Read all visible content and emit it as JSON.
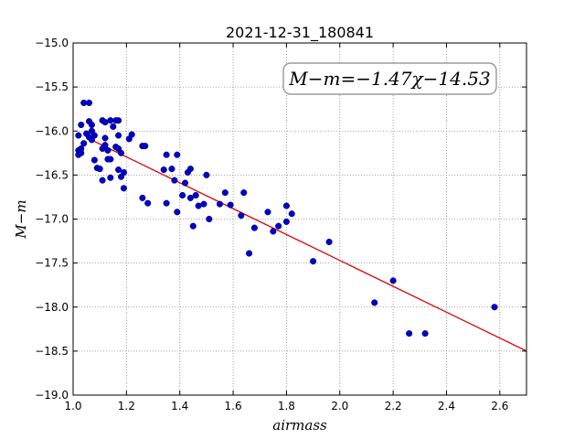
{
  "chart_data": {
    "type": "scatter",
    "title": "2021-12-31_180841",
    "xlabel": "airmass",
    "ylabel": "M−m",
    "xlim": [
      1.0,
      2.7
    ],
    "ylim": [
      -19.0,
      -15.0
    ],
    "xticks": [
      1.0,
      1.2,
      1.4,
      1.6,
      1.8,
      2.0,
      2.2,
      2.4,
      2.6
    ],
    "xtick_labels": [
      "1.0",
      "1.2",
      "1.4",
      "1.6",
      "1.8",
      "2.0",
      "2.2",
      "2.4",
      "2.6"
    ],
    "yticks": [
      -15.0,
      -15.5,
      -16.0,
      -16.5,
      -17.0,
      -17.5,
      -18.0,
      -18.5,
      -19.0
    ],
    "ytick_labels": [
      "−15.0",
      "−15.5",
      "−16.0",
      "−16.5",
      "−17.0",
      "−17.5",
      "−18.0",
      "−18.5",
      "−19.0"
    ],
    "grid": true,
    "annotation": "M−m=−1.47χ−14.53",
    "annotation_position": "top-right",
    "colors": {
      "points": "#0000cc",
      "fit": "#dd0000",
      "grid": "#888888"
    },
    "fit": {
      "slope": -1.47,
      "intercept": -14.53,
      "x_range": [
        1.07,
        2.7
      ]
    },
    "series": [
      {
        "points": [
          [
            1.02,
            -16.22
          ],
          [
            1.02,
            -16.27
          ],
          [
            1.03,
            -16.25
          ],
          [
            1.03,
            -16.2
          ],
          [
            1.02,
            -16.05
          ],
          [
            1.03,
            -15.93
          ],
          [
            1.04,
            -15.68
          ],
          [
            1.05,
            -16.03
          ],
          [
            1.04,
            -16.14
          ],
          [
            1.06,
            -15.68
          ],
          [
            1.06,
            -15.89
          ],
          [
            1.07,
            -15.93
          ],
          [
            1.07,
            -16.0
          ],
          [
            1.06,
            -16.07
          ],
          [
            1.07,
            -16.1
          ],
          [
            1.08,
            -16.05
          ],
          [
            1.08,
            -16.33
          ],
          [
            1.09,
            -16.42
          ],
          [
            1.1,
            -16.43
          ],
          [
            1.11,
            -16.2
          ],
          [
            1.11,
            -16.56
          ],
          [
            1.11,
            -15.88
          ],
          [
            1.12,
            -15.9
          ],
          [
            1.12,
            -16.08
          ],
          [
            1.12,
            -16.16
          ],
          [
            1.13,
            -16.22
          ],
          [
            1.13,
            -16.32
          ],
          [
            1.14,
            -16.32
          ],
          [
            1.14,
            -16.53
          ],
          [
            1.14,
            -15.88
          ],
          [
            1.15,
            -15.95
          ],
          [
            1.16,
            -15.88
          ],
          [
            1.16,
            -16.18
          ],
          [
            1.17,
            -16.2
          ],
          [
            1.17,
            -16.05
          ],
          [
            1.17,
            -15.88
          ],
          [
            1.17,
            -16.44
          ],
          [
            1.18,
            -16.52
          ],
          [
            1.18,
            -16.25
          ],
          [
            1.19,
            -16.47
          ],
          [
            1.19,
            -16.65
          ],
          [
            1.21,
            -16.09
          ],
          [
            1.22,
            -16.04
          ],
          [
            1.26,
            -16.17
          ],
          [
            1.26,
            -16.76
          ],
          [
            1.27,
            -16.17
          ],
          [
            1.28,
            -16.82
          ],
          [
            1.34,
            -16.44
          ],
          [
            1.35,
            -16.27
          ],
          [
            1.35,
            -16.82
          ],
          [
            1.37,
            -16.43
          ],
          [
            1.38,
            -16.56
          ],
          [
            1.39,
            -16.27
          ],
          [
            1.39,
            -16.92
          ],
          [
            1.41,
            -16.73
          ],
          [
            1.42,
            -16.59
          ],
          [
            1.43,
            -16.47
          ],
          [
            1.44,
            -16.43
          ],
          [
            1.44,
            -16.76
          ],
          [
            1.45,
            -17.08
          ],
          [
            1.46,
            -16.73
          ],
          [
            1.47,
            -16.85
          ],
          [
            1.49,
            -16.83
          ],
          [
            1.5,
            -16.5
          ],
          [
            1.51,
            -17.0
          ],
          [
            1.55,
            -16.83
          ],
          [
            1.57,
            -16.7
          ],
          [
            1.59,
            -16.84
          ],
          [
            1.63,
            -16.96
          ],
          [
            1.64,
            -16.7
          ],
          [
            1.66,
            -17.39
          ],
          [
            1.68,
            -17.1
          ],
          [
            1.73,
            -16.92
          ],
          [
            1.75,
            -17.14
          ],
          [
            1.77,
            -17.08
          ],
          [
            1.8,
            -16.85
          ],
          [
            1.8,
            -17.03
          ],
          [
            1.82,
            -16.94
          ],
          [
            1.9,
            -17.48
          ],
          [
            1.96,
            -17.26
          ],
          [
            2.13,
            -17.95
          ],
          [
            2.2,
            -17.7
          ],
          [
            2.26,
            -18.3
          ],
          [
            2.32,
            -18.3
          ],
          [
            2.58,
            -18.0
          ]
        ]
      }
    ]
  }
}
